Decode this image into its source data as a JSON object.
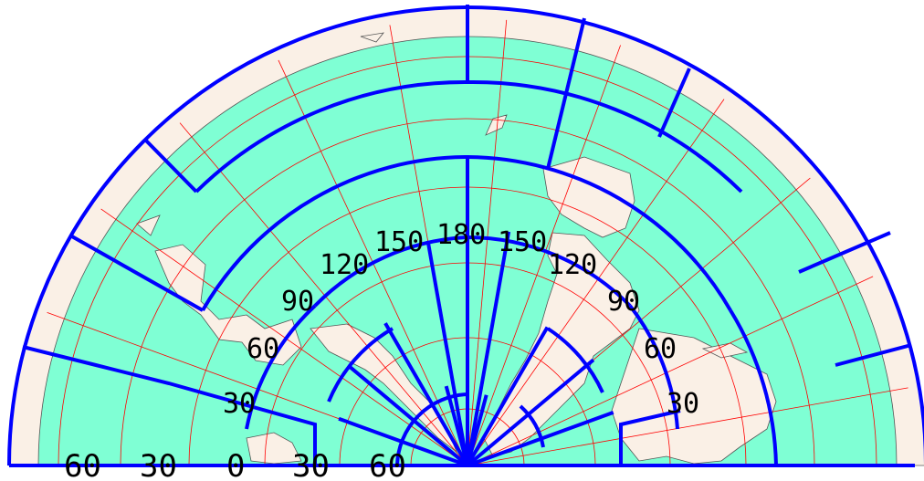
{
  "map": {
    "colors": {
      "ocean": "#7fffd4",
      "land": "#faf0e6",
      "coastline": "#555555",
      "graticule": "#ff0000",
      "grid": "#0000ff",
      "outline": "#0000ff"
    },
    "bottom_labels": [
      "60",
      "30",
      "0",
      "30",
      "60"
    ],
    "arc_labels": [
      "30",
      "60",
      "90",
      "120",
      "150",
      "180",
      "150",
      "120",
      "90",
      "60",
      "30"
    ]
  }
}
